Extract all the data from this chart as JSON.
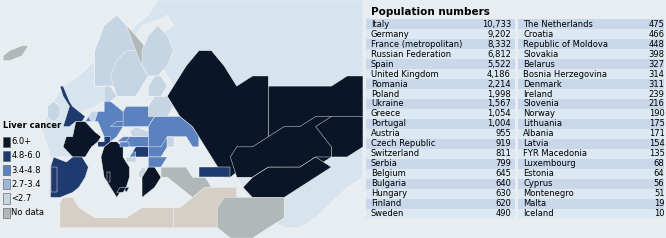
{
  "title": "Population numbers",
  "bg_color": "#e8edf2",
  "ocean_color": "#c8dce8",
  "land_color": "#d8e4ed",
  "left_col": [
    [
      "Italy",
      "10,733"
    ],
    [
      "Germany",
      "9,202"
    ],
    [
      "France (metropolitan)",
      "8,332"
    ],
    [
      "Russian Federation",
      "6,812"
    ],
    [
      "Spain",
      "5,522"
    ],
    [
      "United Kingdom",
      "4,186"
    ],
    [
      "Romania",
      "2,214"
    ],
    [
      "Poland",
      "1,998"
    ],
    [
      "Ukraine",
      "1,567"
    ],
    [
      "Greece",
      "1,054"
    ],
    [
      "Portugal",
      "1,004"
    ],
    [
      "Austria",
      "955"
    ],
    [
      "Czech Republic",
      "919"
    ],
    [
      "Switzerland",
      "811"
    ],
    [
      "Serbia",
      "799"
    ],
    [
      "Belgium",
      "645"
    ],
    [
      "Bulgaria",
      "640"
    ],
    [
      "Hungary",
      "630"
    ],
    [
      "Finland",
      "620"
    ],
    [
      "Sweden",
      "490"
    ]
  ],
  "right_col": [
    [
      "The Netherlands",
      "475"
    ],
    [
      "Croatia",
      "466"
    ],
    [
      "Republic of Moldova",
      "448"
    ],
    [
      "Slovakia",
      "398"
    ],
    [
      "Belarus",
      "327"
    ],
    [
      "Bosnia Herzegovina",
      "314"
    ],
    [
      "Denmark",
      "311"
    ],
    [
      "Ireland",
      "239"
    ],
    [
      "Slovenia",
      "216"
    ],
    [
      "Norway",
      "190"
    ],
    [
      "Lithuania",
      "175"
    ],
    [
      "Albania",
      "171"
    ],
    [
      "Latvia",
      "154"
    ],
    [
      "FYR Macedonia",
      "135"
    ],
    [
      "Luxembourg",
      "68"
    ],
    [
      "Estonia",
      "64"
    ],
    [
      "Cyprus",
      "56"
    ],
    [
      "Montenegro",
      "51"
    ],
    [
      "Malta",
      "19"
    ],
    [
      "Iceland",
      "10"
    ]
  ],
  "legend_items": [
    {
      "label": "6.0+",
      "color": "#0a1628"
    },
    {
      "label": "4.8-6.0",
      "color": "#1e3a6e"
    },
    {
      "label": "3.4-4.8",
      "color": "#5b82be"
    },
    {
      "label": "2.7-3.4",
      "color": "#9db8d8"
    },
    {
      "label": "<2.7",
      "color": "#c5d5e4"
    },
    {
      "label": "No data",
      "color": "#b0b8b8"
    }
  ],
  "legend_title": "Liver cancer",
  "row_colors": [
    "#c8d8ea",
    "#dce8f2"
  ],
  "title_fontsize": 7.5,
  "data_fontsize": 6.0,
  "legend_fontsize": 6.0
}
